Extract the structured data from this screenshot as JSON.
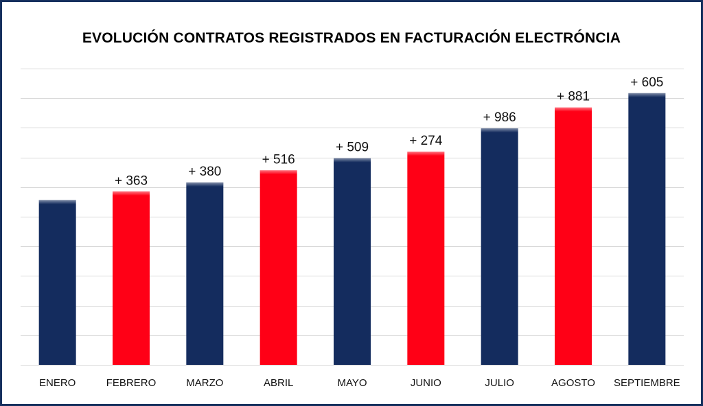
{
  "chart_data": {
    "type": "bar",
    "title": "EVOLUCIÓN CONTRATOS REGISTRADOS EN FACTURACIÓN ELECTRÓNCIA",
    "categories": [
      "ENERO",
      "FEBRERO",
      "MARZO",
      "ABRIL",
      "MAYO",
      "JUNIO",
      "JULIO",
      "AGOSTO",
      "SEPTIEMBRE"
    ],
    "values": [
      6950,
      7313,
      7693,
      8209,
      8718,
      8992,
      9978,
      10859,
      11464
    ],
    "data_labels": [
      "",
      "+ 363",
      "+ 380",
      "+ 516",
      "+ 509",
      "+ 274",
      "+ 986",
      "+ 881",
      "+ 605"
    ],
    "bar_colors": [
      "#142c5e",
      "#ff0016",
      "#142c5e",
      "#ff0016",
      "#142c5e",
      "#ff0016",
      "#142c5e",
      "#ff0016",
      "#142c5e"
    ],
    "ylim": [
      0,
      12500
    ],
    "gridlines": true,
    "xlabel": "",
    "ylabel": ""
  },
  "colors": {
    "frame": "#16305e",
    "navy": "#142c5e",
    "red": "#ff0016",
    "grid": "#d9d9d9"
  }
}
